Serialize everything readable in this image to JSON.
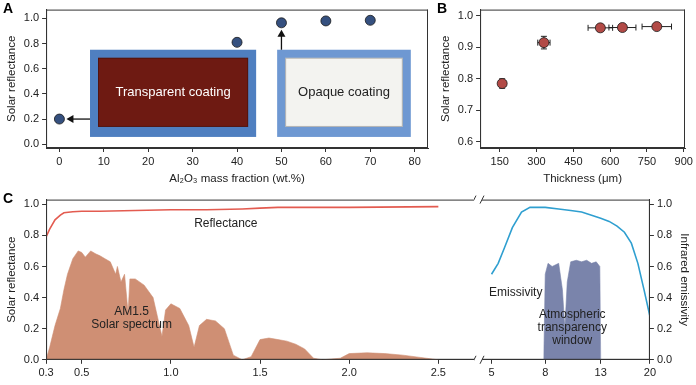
{
  "chart_data": [
    {
      "panel": "A",
      "type": "scatter",
      "x_label": "Al₂O₃ mass fraction (wt.%)",
      "y_label": "Solar reflectance",
      "x": [
        0,
        40,
        50,
        60,
        70
      ],
      "values": [
        0.2,
        0.81,
        0.965,
        0.98,
        0.985
      ],
      "y_error": [
        0.01,
        0.01,
        0.02,
        0.01,
        0.01
      ],
      "color": "#35507f",
      "marker": "circle",
      "xlim": [
        -3,
        83
      ],
      "xticks": [
        0,
        10,
        20,
        30,
        40,
        50,
        60,
        70,
        80
      ],
      "ylim": [
        -0.03,
        1.07
      ],
      "yticks": [
        {
          "value": 0,
          "label": "0.0"
        },
        0.2,
        0.4,
        0.6,
        0.8,
        {
          "value": 1,
          "label": "1.0"
        }
      ],
      "grid": false,
      "insets": [
        {
          "label": "Transparent coating",
          "color": "#6e1a12"
        },
        {
          "label": "Opaque coating",
          "color": "#f3f3f0"
        }
      ]
    },
    {
      "panel": "B",
      "type": "scatter",
      "x_label": "Thickness (μm)",
      "y_label": "Solar reflectance",
      "x": [
        160,
        330,
        560,
        650,
        790
      ],
      "values": [
        0.785,
        0.915,
        0.962,
        0.963,
        0.966
      ],
      "x_error": [
        15,
        25,
        50,
        55,
        60
      ],
      "y_error": [
        0.015,
        0.02,
        0.005,
        0.005,
        0.005
      ],
      "color": "#b24a46",
      "marker": "circle",
      "xlim": [
        70,
        905
      ],
      "xticks": [
        150,
        300,
        450,
        600,
        750,
        900
      ],
      "ylim": [
        0.58,
        1.02
      ],
      "yticks": [
        0.6,
        0.7,
        0.8,
        0.9,
        {
          "value": 1,
          "label": "1.0"
        }
      ],
      "grid": false
    },
    {
      "panel": "C",
      "type": "line",
      "y_label": "Solar reflectance",
      "xlim": [
        0.3,
        2.7
      ],
      "xticks": [
        0.3,
        0.5,
        {
          "value": 1,
          "label": "1.0"
        },
        1.5,
        {
          "value": 2,
          "label": "2.0"
        },
        2.5
      ],
      "ylim": [
        0,
        1.03
      ],
      "yticks": [
        {
          "value": 0,
          "label": "0.0"
        },
        0.2,
        0.4,
        0.6,
        0.8,
        {
          "value": 1,
          "label": "1.0"
        }
      ],
      "grid": false,
      "series": [
        {
          "label": [
            "Reflectance"
          ],
          "type": "line",
          "color": "#e35b50",
          "x": [
            0.3,
            0.32,
            0.35,
            0.38,
            0.4,
            0.45,
            0.5,
            0.6,
            0.8,
            1.0,
            1.2,
            1.4,
            1.5,
            1.6,
            2.0,
            2.5
          ],
          "values": [
            0.79,
            0.84,
            0.9,
            0.93,
            0.945,
            0.952,
            0.955,
            0.955,
            0.96,
            0.965,
            0.965,
            0.97,
            0.975,
            0.98,
            0.98,
            0.985
          ]
        },
        {
          "label": [
            "AM1.5",
            "Solar spectrum"
          ],
          "type": "area",
          "color": "#cf8f74",
          "x": [
            0.3,
            0.32,
            0.35,
            0.38,
            0.4,
            0.42,
            0.45,
            0.48,
            0.5,
            0.52,
            0.55,
            0.58,
            0.6,
            0.63,
            0.66,
            0.69,
            0.7,
            0.72,
            0.74,
            0.76,
            0.77,
            0.8,
            0.85,
            0.9,
            0.93,
            0.95,
            0.97,
            1.0,
            1.05,
            1.1,
            1.13,
            1.16,
            1.2,
            1.25,
            1.3,
            1.35,
            1.4,
            1.45,
            1.5,
            1.55,
            1.6,
            1.65,
            1.7,
            1.75,
            1.8,
            1.85,
            1.95,
            2.0,
            2.1,
            2.2,
            2.3,
            2.4,
            2.5
          ],
          "values": [
            0,
            0.08,
            0.22,
            0.33,
            0.45,
            0.55,
            0.65,
            0.7,
            0.69,
            0.66,
            0.7,
            0.68,
            0.67,
            0.65,
            0.63,
            0.55,
            0.6,
            0.5,
            0.55,
            0.3,
            0.52,
            0.52,
            0.48,
            0.4,
            0.25,
            0.15,
            0.32,
            0.36,
            0.33,
            0.22,
            0.08,
            0.22,
            0.26,
            0.25,
            0.2,
            0.03,
            0,
            0.02,
            0.13,
            0.14,
            0.13,
            0.12,
            0.1,
            0.07,
            0.01,
            0,
            0.01,
            0.04,
            0.045,
            0.04,
            0.03,
            0.015,
            0
          ]
        }
      ]
    },
    {
      "type": "line",
      "log": "x",
      "y2_label": "Infrared emissivity",
      "xlim": [
        4.6,
        20
      ],
      "xticks": [
        5,
        8,
        13,
        20
      ],
      "y2lim": [
        0,
        1.03
      ],
      "y2ticks": [
        {
          "value": 0,
          "label": "0.0"
        },
        0.2,
        0.4,
        0.6,
        0.8,
        {
          "value": 1,
          "label": "1.0"
        }
      ],
      "grid": false,
      "series": [
        {
          "label": [
            "Emissivity"
          ],
          "type": "line",
          "color": "#2f9fd0",
          "axis": "y2",
          "x": [
            5,
            5.3,
            5.6,
            6,
            6.5,
            7,
            8,
            9,
            10,
            11,
            12,
            13,
            14,
            15,
            16,
            17,
            18,
            19,
            20
          ],
          "values": [
            0.55,
            0.62,
            0.72,
            0.85,
            0.95,
            0.98,
            0.98,
            0.97,
            0.96,
            0.95,
            0.93,
            0.91,
            0.89,
            0.86,
            0.82,
            0.75,
            0.62,
            0.45,
            0.28
          ]
        },
        {
          "label": [
            "Atmospheric",
            "transparency",
            "window"
          ],
          "type": "area",
          "color": "#7a84ab",
          "axis": "y2",
          "x": [
            7.9,
            8,
            8.2,
            8.5,
            9,
            9.3,
            9.5,
            9.7,
            10,
            10.5,
            11,
            11.5,
            12,
            12.5,
            12.9,
            13
          ],
          "values": [
            0,
            0.55,
            0.62,
            0.6,
            0.62,
            0.45,
            0.2,
            0.5,
            0.63,
            0.64,
            0.63,
            0.64,
            0.62,
            0.63,
            0.6,
            0
          ]
        }
      ]
    }
  ]
}
